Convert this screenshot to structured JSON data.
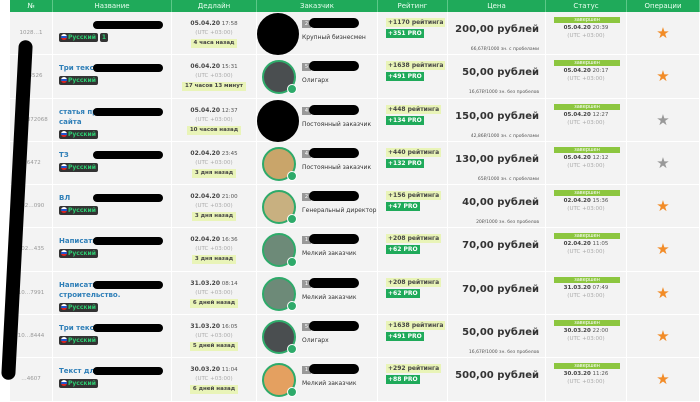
{
  "columns": [
    "№",
    "Название",
    "Дедлайн",
    "Заказчик",
    "Рейтинг",
    "Цена",
    "Статус",
    "Операции"
  ],
  "utc": "(UTC +03:00)",
  "status_label": "завершен",
  "rows": [
    {
      "id": "1028…1",
      "title": "",
      "lang": "Русский",
      "extra": "1",
      "date": "05.04.20",
      "time": "17:58",
      "rel": "4 часа назад",
      "avatar": "hidden",
      "level": "2",
      "role": "Крупный бизнесмен",
      "rating": "+1170 рейтинга",
      "pro": "+351 PRO",
      "price": "200,00 рублей",
      "rate": "66,67₽/1000 зн. с пробелами",
      "sdate": "05.04.20",
      "stime": "20:39",
      "star": "#f28c28"
    },
    {
      "id": "…93526",
      "title": "Три текста по",
      "lang": "Русский",
      "date": "06.04.20",
      "time": "15:31",
      "rel": "17 часов 13 минут",
      "avatar": "wolf",
      "level": "5",
      "role": "Олигарх",
      "rating": "+1638 рейтинга",
      "pro": "+491 PRO",
      "price": "50,00 рублей",
      "rate": "16,67₽/1000 зн. без пробелов",
      "sdate": "05.04.20",
      "stime": "20:17",
      "star": "#f28c28"
    },
    {
      "id": "…02872068",
      "title": "статья про разработку сайта",
      "lang": "Русский",
      "date": "05.04.20",
      "time": "12:37",
      "rel": "10 часов назад",
      "avatar": "hidden",
      "level": "4",
      "role": "Постоянный заказчик",
      "rating": "+448 рейтинга",
      "pro": "+134 PRO",
      "price": "150,00 рублей",
      "rate": "42,86₽/1000 зн. с пробелами",
      "sdate": "05.04.20",
      "stime": "12:27",
      "star": "#999999"
    },
    {
      "id": "…6472",
      "title": "ТЗ",
      "lang": "Русский",
      "date": "02.04.20",
      "time": "23:45",
      "rel": "3 дня назад",
      "avatar": "deer",
      "level": "4",
      "role": "Постоянный заказчик",
      "rating": "+440 рейтинга",
      "pro": "+132 PRO",
      "price": "130,00 рублей",
      "rate": "65₽/1000 зн. с пробелами",
      "sdate": "05.04.20",
      "stime": "12:12",
      "star": "#999999"
    },
    {
      "id": "102…090",
      "title": "ВЛ",
      "lang": "Русский",
      "date": "02.04.20",
      "time": "21:00",
      "rel": "3 дня назад",
      "avatar": "cat",
      "level": "2",
      "role": "Генеральный директор",
      "rating": "+156 рейтинга",
      "pro": "+47 PRO",
      "price": "40,00 рублей",
      "rate": "20₽/1000 зн. без пробелов",
      "sdate": "02.04.20",
      "stime": "15:36",
      "star": "#f28c28"
    },
    {
      "id": "102…435",
      "title": "Написать",
      "lang": "Русский",
      "date": "02.04.20",
      "time": "16:36",
      "rel": "3 дня назад",
      "avatar": "lynx",
      "level": "1",
      "role": "Мелкий заказчик",
      "rating": "+208 рейтинга",
      "pro": "+62 PRO",
      "price": "70,00 рублей",
      "rate": "",
      "sdate": "02.04.20",
      "stime": "11:05",
      "star": "#f28c28"
    },
    {
      "id": "10…7991",
      "title": "Написать статью про строительство.",
      "lang": "Русский",
      "date": "31.03.20",
      "time": "08:14",
      "rel": "6 дней назад",
      "avatar": "lynx",
      "level": "1",
      "role": "Мелкий заказчик",
      "rating": "+208 рейтинга",
      "pro": "+62 PRO",
      "price": "70,00 рублей",
      "rate": "",
      "sdate": "31.03.20",
      "stime": "07:49",
      "star": "#f28c28"
    },
    {
      "id": "10…8444",
      "title": "Три текста по",
      "lang": "Русский",
      "date": "31.03.20",
      "time": "16:05",
      "rel": "5 дней назад",
      "avatar": "wolf",
      "level": "5",
      "role": "Олигарх",
      "rating": "+1638 рейтинга",
      "pro": "+491 PRO",
      "price": "50,00 рублей",
      "rate": "16,67₽/1000 зн. без пробелов",
      "sdate": "30.03.20",
      "stime": "22:00",
      "star": "#f28c28"
    },
    {
      "id": "…4607",
      "title": "Текст для сайта",
      "lang": "Русский",
      "date": "30.03.20",
      "time": "11:04",
      "rel": "6 дней назад",
      "avatar": "rabbit",
      "level": "1",
      "role": "Мелкий заказчик",
      "rating": "+292 рейтинга",
      "pro": "+88 PRO",
      "price": "500,00 рублей",
      "rate": "",
      "sdate": "30.03.20",
      "stime": "11:26",
      "star": "#f28c28"
    }
  ]
}
